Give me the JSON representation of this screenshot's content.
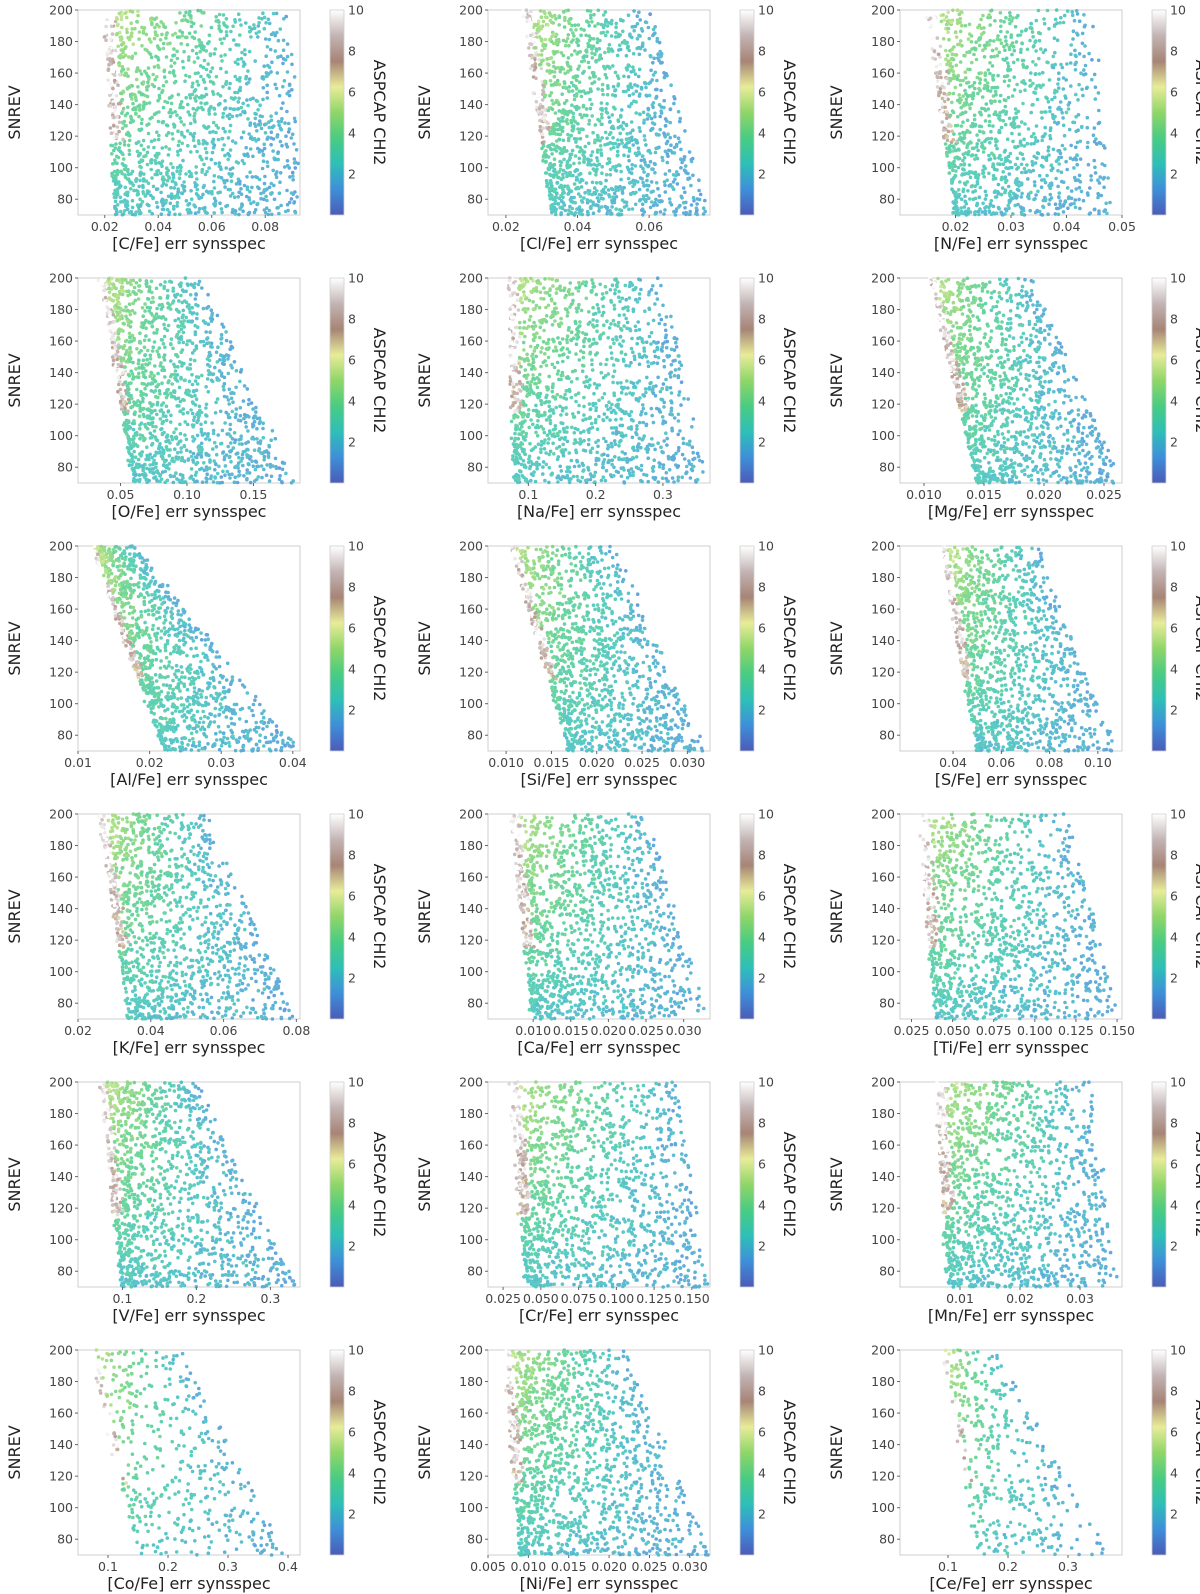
{
  "figure": {
    "ylabel": "SNREV",
    "colorbar_label": "ASPCAP CHI2",
    "colorbar_ticks": [
      2,
      4,
      6,
      8,
      10
    ],
    "colorbar_range": [
      0,
      10
    ],
    "colormap": [
      "#4b5bb8",
      "#3e8fd9",
      "#2fbfb8",
      "#49cc82",
      "#8fd668",
      "#e8ec98",
      "#a78476",
      "#c3b4b4",
      "#ffffff"
    ],
    "point_alpha": 0.8
  },
  "chart_data": [
    {
      "type": "scatter",
      "xlabel": "[C/Fe] err synsspec",
      "xlim": [
        0.01,
        0.093
      ],
      "xticks": [
        "0.02",
        "0.04",
        "0.06",
        "0.08"
      ],
      "ylim": [
        70,
        200
      ],
      "yticks": [
        80,
        100,
        120,
        140,
        160,
        180,
        200
      ],
      "density": "high",
      "point_count": 1400,
      "x_left_at_200": 0.02,
      "x_left_at_70": 0.024,
      "x_right_at_200": 0.09,
      "x_right_at_70": 0.092
    },
    {
      "type": "scatter",
      "xlabel": "[Cl/Fe] err synsspec",
      "xlim": [
        0.015,
        0.077
      ],
      "xticks": [
        "0.02",
        "0.04",
        "0.06"
      ],
      "ylim": [
        70,
        200
      ],
      "yticks": [
        80,
        100,
        120,
        140,
        160,
        180,
        200
      ],
      "density": "high",
      "point_count": 1400,
      "x_left_at_200": 0.025,
      "x_left_at_70": 0.033,
      "x_right_at_200": 0.06,
      "x_right_at_70": 0.077
    },
    {
      "type": "scatter",
      "xlabel": "[N/Fe] err synsspec",
      "xlim": [
        0.01,
        0.05
      ],
      "xticks": [
        "0.02",
        "0.03",
        "0.04",
        "0.05"
      ],
      "ylim": [
        70,
        200
      ],
      "yticks": [
        80,
        100,
        120,
        140,
        160,
        180,
        200
      ],
      "density": "medium",
      "point_count": 1200,
      "x_left_at_200": 0.015,
      "x_left_at_70": 0.02,
      "x_right_at_200": 0.045,
      "x_right_at_70": 0.048
    },
    {
      "type": "scatter",
      "xlabel": "[O/Fe] err synsspec",
      "xlim": [
        0.018,
        0.185
      ],
      "xticks": [
        "0.05",
        "0.10",
        "0.15"
      ],
      "ylim": [
        70,
        200
      ],
      "yticks": [
        80,
        100,
        120,
        140,
        160,
        180,
        200
      ],
      "density": "high",
      "point_count": 1400,
      "x_left_at_200": 0.035,
      "x_left_at_70": 0.06,
      "x_right_at_200": 0.11,
      "x_right_at_70": 0.182
    },
    {
      "type": "scatter",
      "xlabel": "[Na/Fe] err synsspec",
      "xlim": [
        0.04,
        0.37
      ],
      "xticks": [
        "0.1",
        "0.2",
        "0.3"
      ],
      "ylim": [
        70,
        200
      ],
      "yticks": [
        80,
        100,
        120,
        140,
        160,
        180,
        200
      ],
      "density": "high",
      "point_count": 1400,
      "x_left_at_200": 0.07,
      "x_left_at_70": 0.08,
      "x_right_at_200": 0.3,
      "x_right_at_70": 0.365
    },
    {
      "type": "scatter",
      "xlabel": "[Mg/Fe] err synsspec",
      "xlim": [
        0.008,
        0.0265
      ],
      "xticks": [
        "0.010",
        "0.015",
        "0.020",
        "0.025"
      ],
      "ylim": [
        70,
        200
      ],
      "yticks": [
        80,
        100,
        120,
        140,
        160,
        180,
        200
      ],
      "density": "high",
      "point_count": 1300,
      "x_left_at_200": 0.0105,
      "x_left_at_70": 0.0145,
      "x_right_at_200": 0.019,
      "x_right_at_70": 0.0265
    },
    {
      "type": "scatter",
      "xlabel": "[Al/Fe] err synsspec",
      "xlim": [
        0.01,
        0.041
      ],
      "xticks": [
        "0.01",
        "0.02",
        "0.03",
        "0.04"
      ],
      "ylim": [
        70,
        200
      ],
      "yticks": [
        80,
        100,
        120,
        140,
        160,
        180,
        200
      ],
      "density": "high",
      "point_count": 1200,
      "x_left_at_200": 0.012,
      "x_left_at_70": 0.022,
      "x_right_at_200": 0.018,
      "x_right_at_70": 0.041
    },
    {
      "type": "scatter",
      "xlabel": "[Si/Fe] err synsspec",
      "xlim": [
        0.008,
        0.0325
      ],
      "xticks": [
        "0.010",
        "0.015",
        "0.020",
        "0.025",
        "0.030"
      ],
      "ylim": [
        70,
        200
      ],
      "yticks": [
        80,
        100,
        120,
        140,
        160,
        180,
        200
      ],
      "density": "high",
      "point_count": 1300,
      "x_left_at_200": 0.0105,
      "x_left_at_70": 0.017,
      "x_right_at_200": 0.022,
      "x_right_at_70": 0.032
    },
    {
      "type": "scatter",
      "xlabel": "[S/Fe] err synsspec",
      "xlim": [
        0.018,
        0.11
      ],
      "xticks": [
        "0.04",
        "0.06",
        "0.08",
        "0.10"
      ],
      "ylim": [
        70,
        200
      ],
      "yticks": [
        80,
        100,
        120,
        140,
        160,
        180,
        200
      ],
      "density": "high",
      "point_count": 1300,
      "x_left_at_200": 0.035,
      "x_left_at_70": 0.05,
      "x_right_at_200": 0.075,
      "x_right_at_70": 0.108
    },
    {
      "type": "scatter",
      "xlabel": "[K/Fe] err synsspec",
      "xlim": [
        0.02,
        0.081
      ],
      "xticks": [
        "0.02",
        "0.04",
        "0.06",
        "0.08"
      ],
      "ylim": [
        70,
        200
      ],
      "yticks": [
        80,
        100,
        120,
        140,
        160,
        180,
        200
      ],
      "density": "high",
      "point_count": 1300,
      "x_left_at_200": 0.026,
      "x_left_at_70": 0.034,
      "x_right_at_200": 0.055,
      "x_right_at_70": 0.08
    },
    {
      "type": "scatter",
      "xlabel": "[Ca/Fe] err synsspec",
      "xlim": [
        0.004,
        0.0335
      ],
      "xticks": [
        "0.010",
        "0.015",
        "0.020",
        "0.025",
        "0.030"
      ],
      "ylim": [
        70,
        200
      ],
      "yticks": [
        80,
        100,
        120,
        140,
        160,
        180,
        200
      ],
      "density": "high",
      "point_count": 1400,
      "x_left_at_200": 0.007,
      "x_left_at_70": 0.01,
      "x_right_at_200": 0.025,
      "x_right_at_70": 0.033
    },
    {
      "type": "scatter",
      "xlabel": "[Ti/Fe] err synsspec",
      "xlim": [
        0.018,
        0.153
      ],
      "xticks": [
        "0.025",
        "0.050",
        "0.075",
        "0.100",
        "0.125",
        "0.150"
      ],
      "ylim": [
        70,
        200
      ],
      "yticks": [
        80,
        100,
        120,
        140,
        160,
        180,
        200
      ],
      "density": "high",
      "point_count": 1300,
      "x_left_at_200": 0.03,
      "x_left_at_70": 0.04,
      "x_right_at_200": 0.12,
      "x_right_at_70": 0.15
    },
    {
      "type": "scatter",
      "xlabel": "[V/Fe] err synsspec",
      "xlim": [
        0.04,
        0.34
      ],
      "xticks": [
        "0.1",
        "0.2",
        "0.3"
      ],
      "ylim": [
        70,
        200
      ],
      "yticks": [
        80,
        100,
        120,
        140,
        160,
        180,
        200
      ],
      "density": "high",
      "point_count": 1300,
      "x_left_at_200": 0.07,
      "x_left_at_70": 0.1,
      "x_right_at_200": 0.2,
      "x_right_at_70": 0.335
    },
    {
      "type": "scatter",
      "xlabel": "[Cr/Fe] err synsspec",
      "xlim": [
        0.015,
        0.162
      ],
      "xticks": [
        "0.025",
        "0.050",
        "0.075",
        "0.100",
        "0.125",
        "0.150"
      ],
      "ylim": [
        70,
        200
      ],
      "yticks": [
        80,
        100,
        120,
        140,
        160,
        180,
        200
      ],
      "density": "high",
      "point_count": 1400,
      "x_left_at_200": 0.03,
      "x_left_at_70": 0.04,
      "x_right_at_200": 0.14,
      "x_right_at_70": 0.16
    },
    {
      "type": "scatter",
      "xlabel": "[Mn/Fe] err synsspec",
      "xlim": [
        0.0,
        0.037
      ],
      "xticks": [
        "0.01",
        "0.02",
        "0.03"
      ],
      "ylim": [
        70,
        200
      ],
      "yticks": [
        80,
        100,
        120,
        140,
        160,
        180,
        200
      ],
      "density": "high",
      "point_count": 1400,
      "x_left_at_200": 0.006,
      "x_left_at_70": 0.008,
      "x_right_at_200": 0.032,
      "x_right_at_70": 0.036
    },
    {
      "type": "scatter",
      "xlabel": "[Co/Fe] err synsspec",
      "xlim": [
        0.05,
        0.42
      ],
      "xticks": [
        "0.1",
        "0.2",
        "0.3",
        "0.4"
      ],
      "ylim": [
        70,
        200
      ],
      "yticks": [
        80,
        100,
        120,
        140,
        160,
        180,
        200
      ],
      "density": "low",
      "point_count": 450,
      "x_left_at_200": 0.07,
      "x_left_at_70": 0.15,
      "x_right_at_200": 0.22,
      "x_right_at_70": 0.4
    },
    {
      "type": "scatter",
      "xlabel": "[Ni/Fe] err synsspec",
      "xlim": [
        0.005,
        0.0325
      ],
      "xticks": [
        "0.005",
        "0.010",
        "0.015",
        "0.020",
        "0.025",
        "0.030"
      ],
      "ylim": [
        70,
        200
      ],
      "yticks": [
        80,
        100,
        120,
        140,
        160,
        180,
        200
      ],
      "density": "high",
      "point_count": 1400,
      "x_left_at_200": 0.007,
      "x_left_at_70": 0.009,
      "x_right_at_200": 0.022,
      "x_right_at_70": 0.0325
    },
    {
      "type": "scatter",
      "xlabel": "[Ce/Fe] err synsspec",
      "xlim": [
        0.02,
        0.39
      ],
      "xticks": [
        "0.1",
        "0.2",
        "0.3"
      ],
      "ylim": [
        70,
        200
      ],
      "yticks": [
        80,
        100,
        120,
        140,
        160,
        180,
        200
      ],
      "density": "low",
      "point_count": 400,
      "x_left_at_200": 0.09,
      "x_left_at_70": 0.15,
      "x_right_at_200": 0.18,
      "x_right_at_70": 0.37
    }
  ]
}
